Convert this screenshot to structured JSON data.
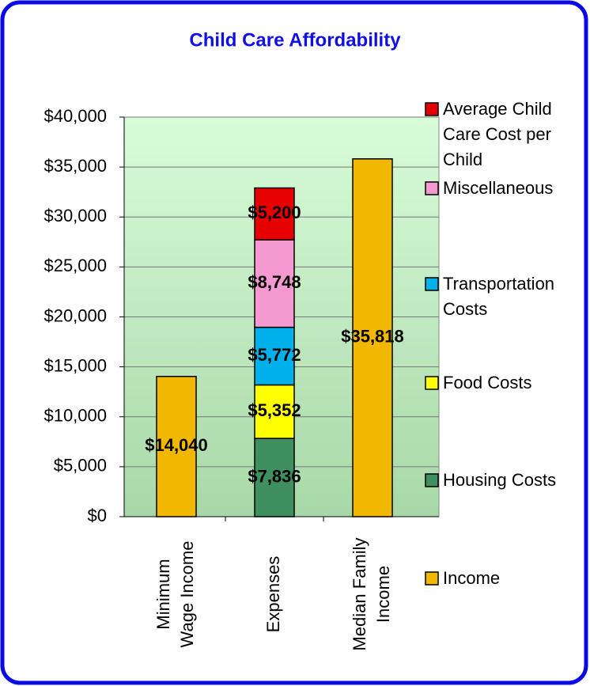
{
  "chart_data": {
    "type": "stacked_bar",
    "title": "Child Care Affordability",
    "categories": [
      "Minimum Wage Income",
      "Expenses",
      "Median Family Income"
    ],
    "series": [
      {
        "name": "Income",
        "color": "#f2b800",
        "values": [
          14040,
          null,
          35818
        ],
        "value_labels": [
          "$14,040",
          null,
          "$35,818"
        ]
      },
      {
        "name": "Housing Costs",
        "color": "#3f8f5f",
        "values": [
          null,
          7836,
          null
        ],
        "value_labels": [
          null,
          "$7,836",
          null
        ]
      },
      {
        "name": "Food Costs",
        "color": "#ffff00",
        "values": [
          null,
          5352,
          null
        ],
        "value_labels": [
          null,
          "$5,352",
          null
        ]
      },
      {
        "name": "Transportation Costs",
        "color": "#00b0e8",
        "values": [
          null,
          5772,
          null
        ],
        "value_labels": [
          null,
          "$5,772",
          null
        ]
      },
      {
        "name": "Miscellaneous",
        "color": "#f49ad0",
        "values": [
          null,
          8748,
          null
        ],
        "value_labels": [
          null,
          "$8,748",
          null
        ]
      },
      {
        "name": "Average Child Care Cost per Child",
        "color": "#e60000",
        "values": [
          null,
          5200,
          null
        ],
        "value_labels": [
          null,
          "$5,200",
          null
        ]
      }
    ],
    "ylim": [
      0,
      40000
    ],
    "yticks": [
      {
        "value": 0,
        "label": "$0"
      },
      {
        "value": 5000,
        "label": "$5,000"
      },
      {
        "value": 10000,
        "label": "$10,000"
      },
      {
        "value": 15000,
        "label": "$15,000"
      },
      {
        "value": 20000,
        "label": "$20,000"
      },
      {
        "value": 25000,
        "label": "$25,000"
      },
      {
        "value": 30000,
        "label": "$30,000"
      },
      {
        "value": 35000,
        "label": "$35,000"
      },
      {
        "value": 40000,
        "label": "$40,000"
      }
    ],
    "grid": true,
    "legend": "right"
  }
}
